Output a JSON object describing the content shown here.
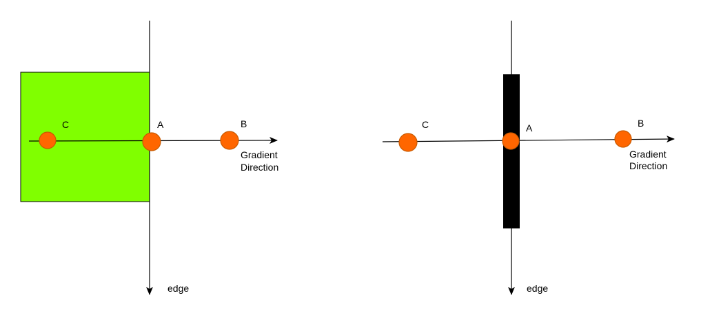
{
  "colors": {
    "region_fill": "#80ff00",
    "region_stroke": "#000000",
    "thin_edge_fill": "#000000",
    "point_fill": "#ff6600",
    "line": "#000000"
  },
  "left_panel": {
    "edge_label": "edge",
    "points": {
      "c": "C",
      "a": "A",
      "b": "B"
    },
    "gradient_label_line1": "Gradient",
    "gradient_label_line2": "Direction"
  },
  "right_panel": {
    "edge_label": "edge",
    "points": {
      "c": "C",
      "a": "A",
      "b": "B"
    },
    "gradient_label_line1": "Gradient",
    "gradient_label_line2": "Direction"
  }
}
